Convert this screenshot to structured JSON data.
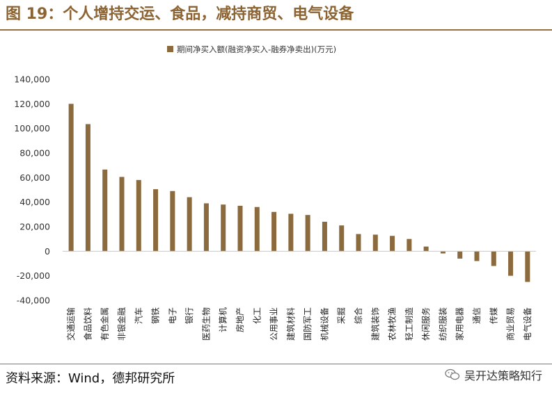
{
  "figure": {
    "title": "图 19：个人增持交运、食品，减持商贸、电气设备",
    "source": "资料来源：Wind，德邦研究所",
    "watermark": "吴开达策略知行"
  },
  "colors": {
    "bar": "#8b6a3e",
    "accent": "#8c6332",
    "axis": "#c8c8c8"
  },
  "chart_data": {
    "type": "bar",
    "title": "",
    "xlabel": "",
    "ylabel": "",
    "ylim": [
      -40000,
      140000
    ],
    "yticks": [
      -40000,
      -20000,
      0,
      20000,
      40000,
      60000,
      80000,
      100000,
      120000,
      140000
    ],
    "ytick_labels": [
      "-40,000",
      "-20,000",
      "0",
      "20,000",
      "40,000",
      "60,000",
      "80,000",
      "100,000",
      "120,000",
      "140,000"
    ],
    "grid": false,
    "legend": "top-center",
    "series": [
      {
        "name": "期间净买入额(融资净买入-融券净卖出)(万元)",
        "values": [
          120000,
          103500,
          66500,
          60500,
          58000,
          50500,
          49000,
          44000,
          39000,
          38000,
          37000,
          36000,
          32000,
          30500,
          29500,
          24000,
          21000,
          14000,
          13500,
          12500,
          10000,
          3800,
          -1800,
          -6000,
          -8000,
          -12000,
          -20000,
          -25000
        ]
      }
    ],
    "categories": [
      "交通运输",
      "食品饮料",
      "有色金属",
      "非银金融",
      "汽车",
      "钢铁",
      "电子",
      "银行",
      "医药生物",
      "计算机",
      "房地产",
      "化工",
      "公用事业",
      "建筑材料",
      "国防军工",
      "机械设备",
      "采掘",
      "综合",
      "建筑装饰",
      "农林牧渔",
      "轻工制造",
      "休闲服务",
      "纺织服装",
      "家用电器",
      "通信",
      "传媒",
      "商业贸易",
      "电气设备"
    ]
  }
}
